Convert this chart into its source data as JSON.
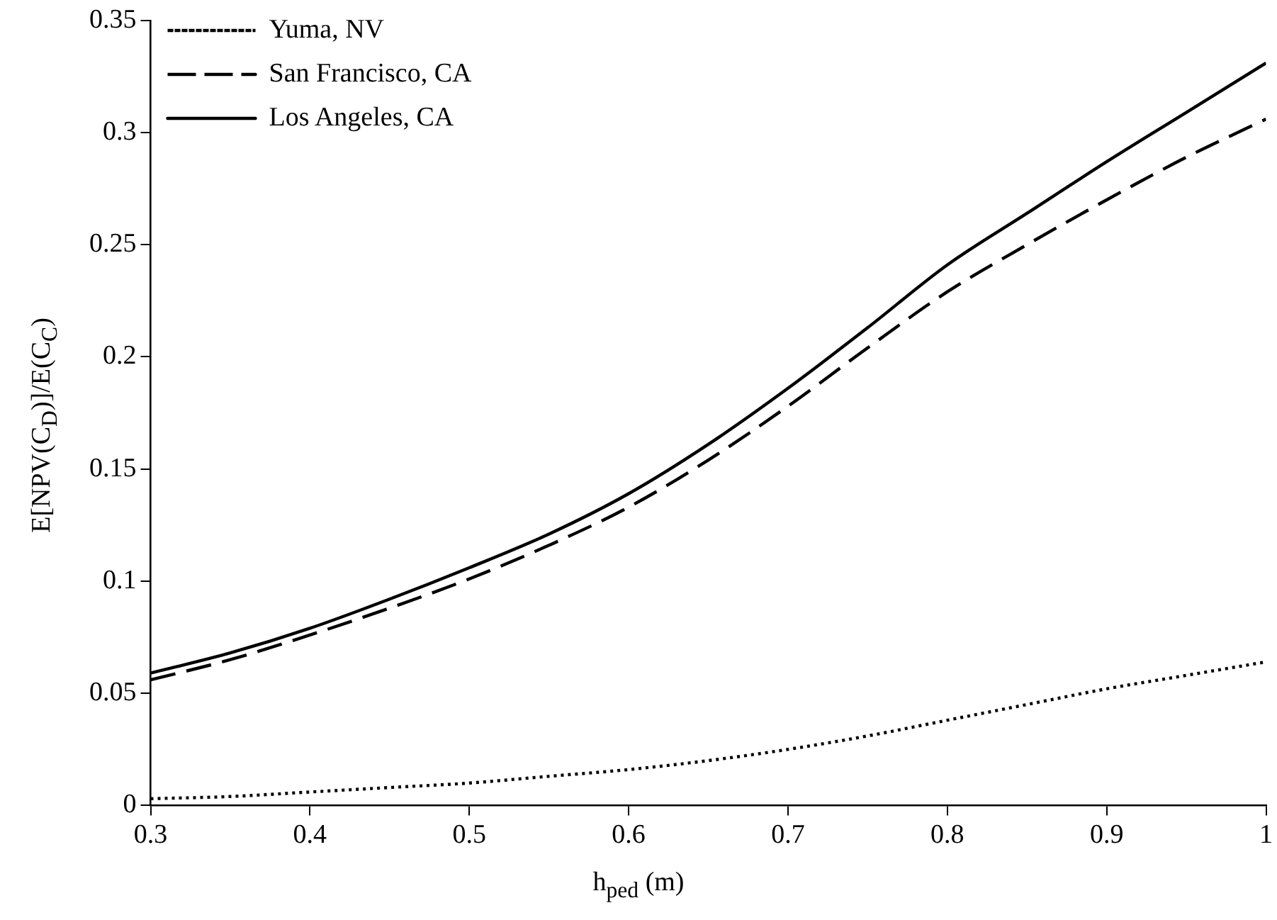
{
  "chart_data": {
    "type": "line",
    "xlabel": "h$_{ped}$ (m)",
    "ylabel": "E[NPV(C$_{D}$)]/E(C$_{C}$)",
    "x": [
      0.3,
      0.35,
      0.4,
      0.45,
      0.5,
      0.55,
      0.6,
      0.65,
      0.7,
      0.75,
      0.8,
      0.85,
      0.9,
      0.95,
      1.0
    ],
    "series": [
      {
        "name": "Yuma, NV",
        "color": "#000000",
        "line_style": "dotted",
        "values": [
          0.003,
          0.004,
          0.006,
          0.008,
          0.01,
          0.013,
          0.016,
          0.02,
          0.025,
          0.031,
          0.038,
          0.045,
          0.052,
          0.058,
          0.064
        ]
      },
      {
        "name": "San Francisco, CA",
        "color": "#000000",
        "line_style": "dashed",
        "values": [
          0.056,
          0.065,
          0.076,
          0.088,
          0.101,
          0.116,
          0.133,
          0.154,
          0.178,
          0.204,
          0.229,
          0.25,
          0.27,
          0.289,
          0.306
        ]
      },
      {
        "name": "Los Angeles, CA",
        "color": "#000000",
        "line_style": "solid",
        "values": [
          0.059,
          0.068,
          0.079,
          0.092,
          0.106,
          0.121,
          0.139,
          0.161,
          0.186,
          0.213,
          0.241,
          0.264,
          0.287,
          0.309,
          0.331
        ]
      }
    ],
    "xlim": [
      0.3,
      1
    ],
    "xticks": [
      0.3,
      0.4,
      0.5,
      0.6,
      0.7,
      0.8,
      0.9,
      1
    ],
    "ylim": [
      0,
      0.35
    ],
    "yticks": [
      0,
      0.05,
      0.1,
      0.15,
      0.2,
      0.25,
      0.3,
      0.35
    ],
    "grid": false,
    "legend": "top left",
    "marker": "none"
  }
}
